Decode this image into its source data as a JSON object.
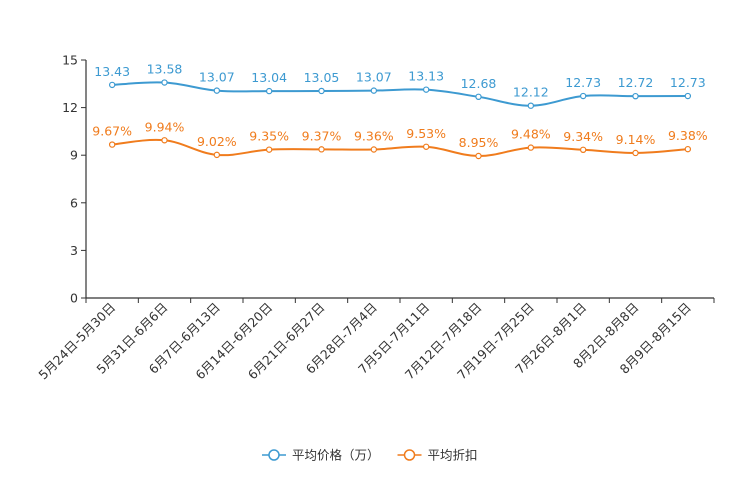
{
  "chart_data": {
    "type": "line",
    "title": "",
    "xlabel": "",
    "ylabel": "",
    "ylim": [
      0,
      15
    ],
    "yticks": [
      "0",
      "3",
      "6",
      "9",
      "12",
      "15"
    ],
    "categories": [
      "5月24日-5月30日",
      "5月31日-6月6日",
      "6月7日-6月13日",
      "6月14日-6月20日",
      "6月21日-6月27日",
      "6月28日-7月4日",
      "7月5日-7月11日",
      "7月12日-7月18日",
      "7月19日-7月25日",
      "7月26日-8月1日",
      "8月2日-8月8日",
      "8月9日-8月15日"
    ],
    "series": [
      {
        "name": "平均价格（万）",
        "color": "#3d9ad1",
        "values": [
          13.43,
          13.58,
          13.07,
          13.04,
          13.05,
          13.07,
          13.13,
          12.68,
          12.12,
          12.73,
          12.72,
          12.73
        ],
        "labels": [
          "13.43",
          "13.58",
          "13.07",
          "13.04",
          "13.05",
          "13.07",
          "13.13",
          "12.68",
          "12.12",
          "12.73",
          "12.72",
          "12.73"
        ]
      },
      {
        "name": "平均折扣",
        "color": "#f07c1d",
        "values": [
          9.67,
          9.94,
          9.02,
          9.35,
          9.37,
          9.36,
          9.53,
          8.95,
          9.48,
          9.34,
          9.14,
          9.38
        ],
        "labels": [
          "9.67%",
          "9.94%",
          "9.02%",
          "9.35%",
          "9.37%",
          "9.36%",
          "9.53%",
          "8.95%",
          "9.48%",
          "9.34%",
          "9.14%",
          "9.38%"
        ]
      }
    ],
    "legend_position": "bottom-center",
    "grid": false
  }
}
